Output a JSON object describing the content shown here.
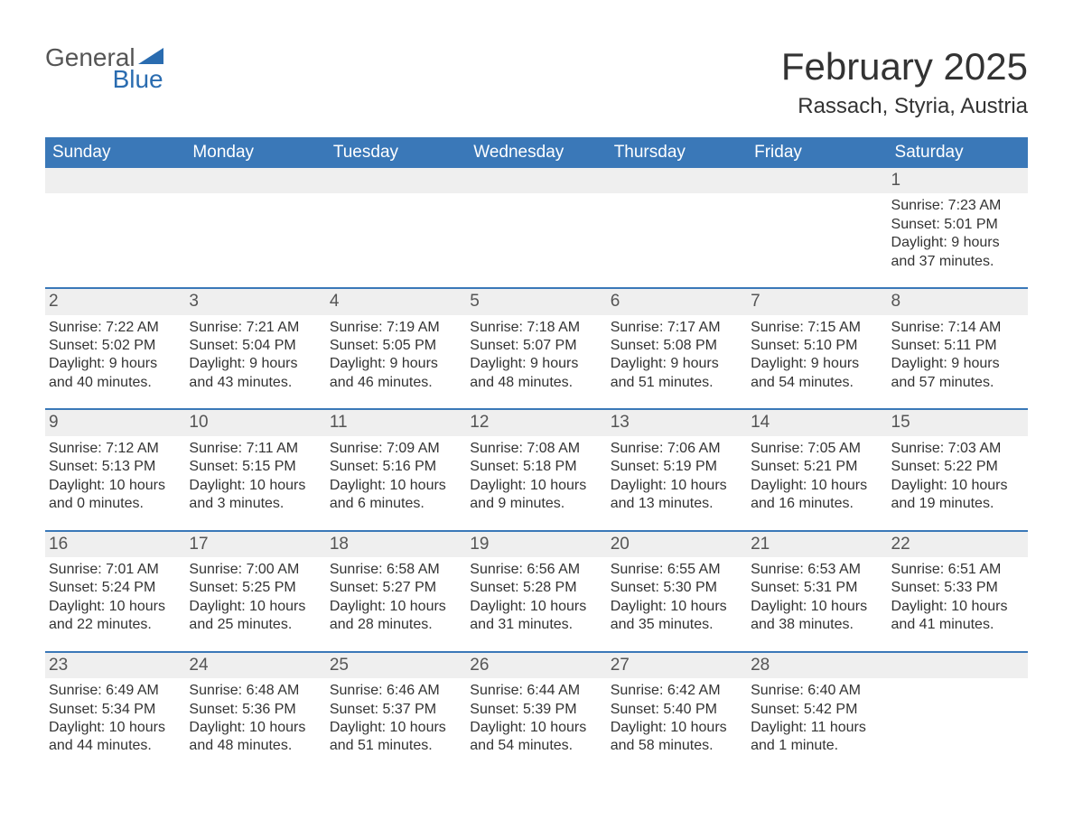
{
  "logo": {
    "top": "General",
    "bottom": "Blue"
  },
  "title": "February 2025",
  "location": "Rassach, Styria, Austria",
  "colors": {
    "header_bg": "#3a78b8",
    "header_text": "#ffffff",
    "border": "#3a78b8",
    "daynum_bg": "#efefef",
    "text": "#333333",
    "logo_accent": "#2a6cb0"
  },
  "day_labels": [
    "Sunday",
    "Monday",
    "Tuesday",
    "Wednesday",
    "Thursday",
    "Friday",
    "Saturday"
  ],
  "labels": {
    "sunrise": "Sunrise: ",
    "sunset": "Sunset: ",
    "daylight": "Daylight: "
  },
  "weeks": [
    [
      null,
      null,
      null,
      null,
      null,
      null,
      {
        "d": "1",
        "sunrise": "7:23 AM",
        "sunset": "5:01 PM",
        "daylight": "9 hours and 37 minutes."
      }
    ],
    [
      {
        "d": "2",
        "sunrise": "7:22 AM",
        "sunset": "5:02 PM",
        "daylight": "9 hours and 40 minutes."
      },
      {
        "d": "3",
        "sunrise": "7:21 AM",
        "sunset": "5:04 PM",
        "daylight": "9 hours and 43 minutes."
      },
      {
        "d": "4",
        "sunrise": "7:19 AM",
        "sunset": "5:05 PM",
        "daylight": "9 hours and 46 minutes."
      },
      {
        "d": "5",
        "sunrise": "7:18 AM",
        "sunset": "5:07 PM",
        "daylight": "9 hours and 48 minutes."
      },
      {
        "d": "6",
        "sunrise": "7:17 AM",
        "sunset": "5:08 PM",
        "daylight": "9 hours and 51 minutes."
      },
      {
        "d": "7",
        "sunrise": "7:15 AM",
        "sunset": "5:10 PM",
        "daylight": "9 hours and 54 minutes."
      },
      {
        "d": "8",
        "sunrise": "7:14 AM",
        "sunset": "5:11 PM",
        "daylight": "9 hours and 57 minutes."
      }
    ],
    [
      {
        "d": "9",
        "sunrise": "7:12 AM",
        "sunset": "5:13 PM",
        "daylight": "10 hours and 0 minutes."
      },
      {
        "d": "10",
        "sunrise": "7:11 AM",
        "sunset": "5:15 PM",
        "daylight": "10 hours and 3 minutes."
      },
      {
        "d": "11",
        "sunrise": "7:09 AM",
        "sunset": "5:16 PM",
        "daylight": "10 hours and 6 minutes."
      },
      {
        "d": "12",
        "sunrise": "7:08 AM",
        "sunset": "5:18 PM",
        "daylight": "10 hours and 9 minutes."
      },
      {
        "d": "13",
        "sunrise": "7:06 AM",
        "sunset": "5:19 PM",
        "daylight": "10 hours and 13 minutes."
      },
      {
        "d": "14",
        "sunrise": "7:05 AM",
        "sunset": "5:21 PM",
        "daylight": "10 hours and 16 minutes."
      },
      {
        "d": "15",
        "sunrise": "7:03 AM",
        "sunset": "5:22 PM",
        "daylight": "10 hours and 19 minutes."
      }
    ],
    [
      {
        "d": "16",
        "sunrise": "7:01 AM",
        "sunset": "5:24 PM",
        "daylight": "10 hours and 22 minutes."
      },
      {
        "d": "17",
        "sunrise": "7:00 AM",
        "sunset": "5:25 PM",
        "daylight": "10 hours and 25 minutes."
      },
      {
        "d": "18",
        "sunrise": "6:58 AM",
        "sunset": "5:27 PM",
        "daylight": "10 hours and 28 minutes."
      },
      {
        "d": "19",
        "sunrise": "6:56 AM",
        "sunset": "5:28 PM",
        "daylight": "10 hours and 31 minutes."
      },
      {
        "d": "20",
        "sunrise": "6:55 AM",
        "sunset": "5:30 PM",
        "daylight": "10 hours and 35 minutes."
      },
      {
        "d": "21",
        "sunrise": "6:53 AM",
        "sunset": "5:31 PM",
        "daylight": "10 hours and 38 minutes."
      },
      {
        "d": "22",
        "sunrise": "6:51 AM",
        "sunset": "5:33 PM",
        "daylight": "10 hours and 41 minutes."
      }
    ],
    [
      {
        "d": "23",
        "sunrise": "6:49 AM",
        "sunset": "5:34 PM",
        "daylight": "10 hours and 44 minutes."
      },
      {
        "d": "24",
        "sunrise": "6:48 AM",
        "sunset": "5:36 PM",
        "daylight": "10 hours and 48 minutes."
      },
      {
        "d": "25",
        "sunrise": "6:46 AM",
        "sunset": "5:37 PM",
        "daylight": "10 hours and 51 minutes."
      },
      {
        "d": "26",
        "sunrise": "6:44 AM",
        "sunset": "5:39 PM",
        "daylight": "10 hours and 54 minutes."
      },
      {
        "d": "27",
        "sunrise": "6:42 AM",
        "sunset": "5:40 PM",
        "daylight": "10 hours and 58 minutes."
      },
      {
        "d": "28",
        "sunrise": "6:40 AM",
        "sunset": "5:42 PM",
        "daylight": "11 hours and 1 minute."
      },
      null
    ]
  ]
}
